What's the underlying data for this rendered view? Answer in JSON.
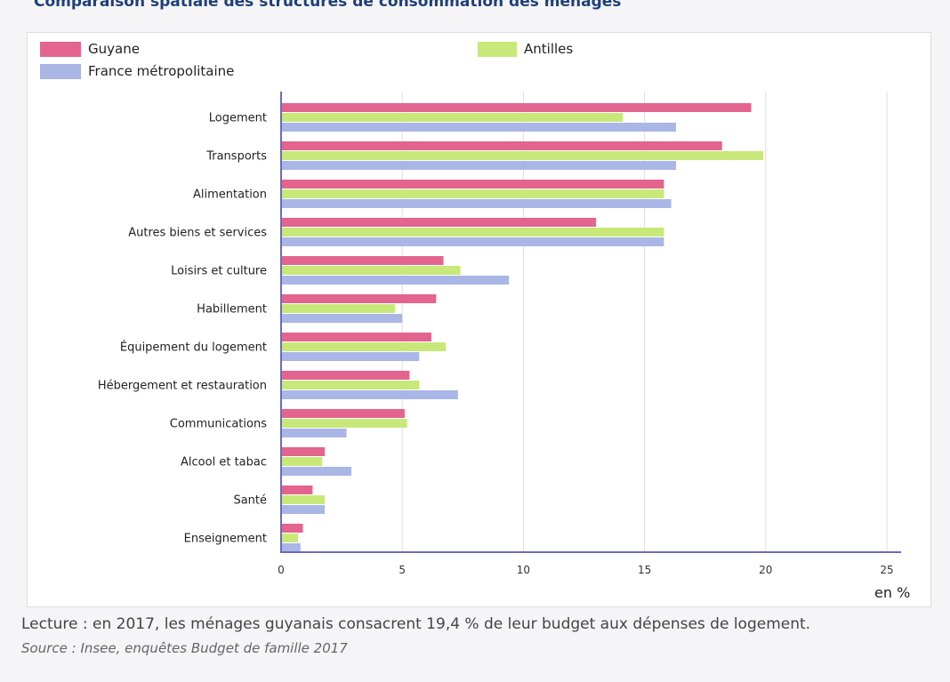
{
  "page": {
    "title": "Comparaison spatiale des structures de consommation des ménages",
    "reading_note": "Lecture : en 2017, les ménages guyanais consacrent 19,4 % de leur budget aux dépenses de logement.",
    "source": "Source : Insee, enquêtes Budget de famille 2017"
  },
  "chart_data": {
    "type": "bar",
    "orientation": "horizontal",
    "unit_label": "en %",
    "xlim": [
      0,
      25
    ],
    "ticks": [
      0,
      5,
      10,
      15,
      20,
      25
    ],
    "grid": "vertical",
    "legend_position": "top",
    "categories": [
      "Logement",
      "Transports",
      "Alimentation",
      "Autres biens et services",
      "Loisirs et culture",
      "Habillement",
      "Équipement du logement",
      "Hébergement et restauration",
      "Communications",
      "Alcool et tabac",
      "Santé",
      "Enseignement"
    ],
    "series": [
      {
        "name": "Guyane",
        "color": "#e3648f",
        "values": [
          19.4,
          18.2,
          15.8,
          13.0,
          6.7,
          6.4,
          6.2,
          5.3,
          5.1,
          1.8,
          1.3,
          0.9
        ]
      },
      {
        "name": "Antilles",
        "color": "#c8e87a",
        "values": [
          14.1,
          19.9,
          15.8,
          15.8,
          7.4,
          4.7,
          6.8,
          5.7,
          5.2,
          1.7,
          1.8,
          0.7
        ]
      },
      {
        "name": "France métropolitaine",
        "color": "#a9b6e6",
        "values": [
          16.3,
          16.3,
          16.1,
          15.8,
          9.4,
          5.0,
          5.7,
          7.3,
          2.7,
          2.9,
          1.8,
          0.8
        ]
      }
    ]
  }
}
